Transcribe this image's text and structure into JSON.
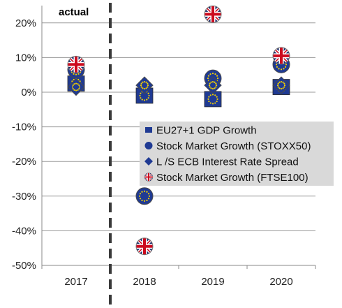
{
  "chart_data": {
    "type": "scatter",
    "annotation": "actual",
    "categories": [
      "2017",
      "2018",
      "2019",
      "2020"
    ],
    "y_ticks": [
      "20%",
      "10%",
      "0%",
      "-10%",
      "-20%",
      "-30%",
      "-40%",
      "-50%"
    ],
    "ylim": [
      -50,
      25
    ],
    "grid": true,
    "legend_position": "center-right",
    "series": [
      {
        "name": "EU27+1 GDP Growth",
        "marker": "eu-flag-square",
        "values": [
          2.5,
          -1,
          -2,
          1.5
        ]
      },
      {
        "name": "Stock Market Growth (STOXX50)",
        "marker": "eu-flag-circle",
        "values": [
          6.5,
          -30,
          4,
          8
        ]
      },
      {
        "name": "L /S ECB Interest Rate Spread",
        "marker": "eu-flag-diamond",
        "values": [
          1.5,
          2,
          2,
          2
        ]
      },
      {
        "name": "Stock Market Growth (FTSE100)",
        "marker": "uk-flag-circle",
        "values": [
          8,
          -44.5,
          22.5,
          10.5
        ]
      }
    ],
    "colors": {
      "eu_blue": "#1f3a93",
      "eu_star": "#f4d000",
      "uk_red": "#cc0a1e",
      "uk_blue": "#1a2a6c",
      "grid": "#9a9a9a",
      "legend_bg": "#d9d9d9"
    }
  }
}
